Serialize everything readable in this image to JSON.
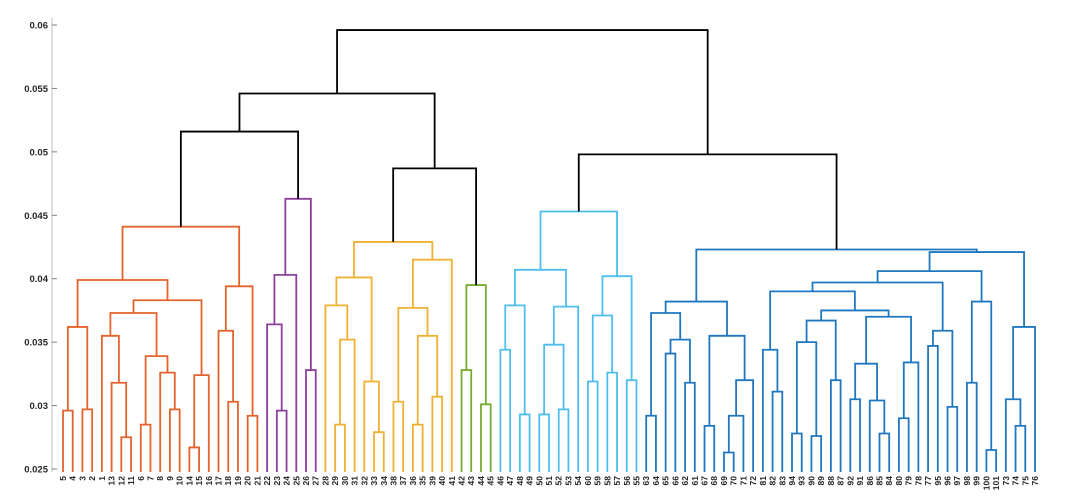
{
  "chart_data": {
    "type": "dendrogram",
    "title": "",
    "xlabel": "",
    "ylabel": "",
    "ylim": [
      0.025,
      0.06
    ],
    "yticks": [
      "0.025",
      "0.03",
      "0.035",
      "0.04",
      "0.045",
      "0.05",
      "0.055",
      "0.06"
    ],
    "grid": false,
    "link_color_top": "#000000",
    "leaf_order": [
      5,
      4,
      3,
      2,
      1,
      13,
      12,
      11,
      6,
      7,
      8,
      9,
      10,
      14,
      15,
      16,
      17,
      18,
      19,
      20,
      21,
      22,
      23,
      24,
      25,
      26,
      27,
      28,
      29,
      30,
      31,
      32,
      33,
      34,
      38,
      37,
      36,
      35,
      39,
      40,
      41,
      42,
      43,
      44,
      45,
      46,
      47,
      48,
      49,
      50,
      51,
      52,
      53,
      54,
      60,
      59,
      58,
      57,
      56,
      55,
      63,
      64,
      65,
      66,
      62,
      61,
      67,
      68,
      69,
      70,
      71,
      72,
      81,
      82,
      83,
      94,
      93,
      90,
      89,
      88,
      87,
      92,
      91,
      86,
      85,
      84,
      80,
      79,
      78,
      77,
      95,
      96,
      97,
      98,
      99,
      100,
      101,
      73,
      74,
      75,
      76
    ],
    "clusters": [
      {
        "color": "#E4622B",
        "tree": [
          [
            [
              [
                5,
                4,
                0.0296
              ],
              [
                3,
                2,
                0.0297
              ],
              0.0362
            ],
            [
              [
                [
                  1,
                  [
                    13,
                    [
                      12,
                      11,
                      0.0275
                    ],
                    0.0318
                  ],
                  0.0355
                ],
                [
                  [
                    6,
                    7,
                    0.0285
                  ],
                  [
                    8,
                    [
                      9,
                      10,
                      0.0297
                    ],
                    0.0326
                  ],
                  0.0339
                ],
                0.0373
              ],
              [
                [
                  14,
                  15,
                  0.0267
                ],
                16,
                0.0324
              ],
              0.0383
            ],
            0.0399
          ],
          [
            [
              17,
              [
                18,
                19,
                0.0303
              ],
              0.0359
            ],
            [
              20,
              21,
              0.0292
            ],
            0.0394
          ],
          0.0441
        ]
      },
      {
        "color": "#8E3F9E",
        "tree": [
          [
            [
              22,
              [
                23,
                24,
                0.0296
              ],
              0.0364
            ],
            25,
            0.0403
          ],
          [
            26,
            27,
            0.0328
          ],
          0.0463
        ]
      },
      {
        "color": "#EFB133",
        "tree": [
          [
            [
              28,
              [
                [
                  29,
                  30,
                  0.0285
                ],
                31,
                0.0352
              ],
              0.0379
            ],
            [
              32,
              [
                33,
                34,
                0.0279
              ],
              0.0319
            ],
            0.0401
          ],
          [
            [
              [
                38,
                37,
                0.0303
              ],
              [
                [
                  36,
                  35,
                  0.0285
                ],
                [
                  39,
                  40,
                  0.0307
                ],
                0.0355
              ],
              0.0377
            ],
            41,
            0.0415
          ],
          0.0429
        ]
      },
      {
        "color": "#77AC30",
        "tree": [
          [
            42,
            43,
            0.0328
          ],
          [
            44,
            45,
            0.0301
          ],
          0.0395
        ]
      },
      {
        "color": "#4DBEEE",
        "tree": [
          [
            [
              [
                46,
                47,
                0.0344
              ],
              [
                48,
                49,
                0.0293
              ],
              0.0379
            ],
            [
              [
                [
                  50,
                  51,
                  0.0293
                ],
                [
                  52,
                  53,
                  0.0297
                ],
                0.0348
              ],
              54,
              0.0378
            ],
            0.0407
          ],
          [
            [
              [
                60,
                59,
                0.0319
              ],
              [
                58,
                57,
                0.0326
              ],
              0.0371
            ],
            [
              56,
              55,
              0.032
            ],
            0.0402
          ],
          0.0453
        ]
      },
      {
        "color": "#1F77C0",
        "tree": [
          [
            [
              [
                63,
                64,
                0.0292
              ],
              [
                [
                  65,
                  66,
                  0.0341
                ],
                [
                  62,
                  61,
                  0.0318
                ],
                0.0352
              ],
              0.0373
            ],
            [
              [
                67,
                68,
                0.0284
              ],
              [
                [
                  [
                    69,
                    70,
                    0.0263
                  ],
                  71,
                  0.0292
                ],
                72,
                0.032
              ],
              0.0355
            ],
            0.0382
          ],
          [
            [
              [
                [
                  [
                    81,
                    [
                      82,
                      83,
                      0.0311
                    ],
                    0.0344
                  ],
                  [
                    [
                      [
                        [
                          94,
                          93,
                          0.0278
                        ],
                        [
                          90,
                          89,
                          0.0276
                        ],
                        0.035
                      ],
                      [
                        88,
                        87,
                        0.032
                      ],
                      0.0367
                    ],
                    [
                      [
                        [
                          92,
                          91,
                          0.0305
                        ],
                        [
                          86,
                          [
                            85,
                            84,
                            0.0278
                          ],
                          0.0304
                        ],
                        0.0333
                      ],
                      [
                        [
                          80,
                          79,
                          0.029
                        ],
                        78,
                        0.0334
                      ],
                      0.037
                    ],
                    0.0375
                  ],
                  0.039
                ],
                [
                  [
                    77,
                    95,
                    0.0347
                  ],
                  [
                    96,
                    97,
                    0.0299
                  ],
                  0.0359
                ],
                0.0397
              ],
              [
                [
                  98,
                  99,
                  0.0318
                ],
                [
                  100,
                  101,
                  0.0265
                ],
                0.0382
              ],
              0.0406
            ],
            [
              [
                73,
                [
                  74,
                  75,
                  0.0284
                ],
                0.0305
              ],
              76,
              0.0362
            ],
            0.0421
          ],
          0.0423
        ]
      }
    ],
    "top_tree": [
      [
        [
          {
            "cluster": 0
          },
          {
            "cluster": 1
          },
          0.0516
        ],
        [
          {
            "cluster": 2
          },
          {
            "cluster": 3
          },
          0.0487
        ],
        0.0546
      ],
      [
        {
          "cluster": 4
        },
        {
          "cluster": 5
        },
        0.0498
      ],
      0.0596
    ]
  }
}
